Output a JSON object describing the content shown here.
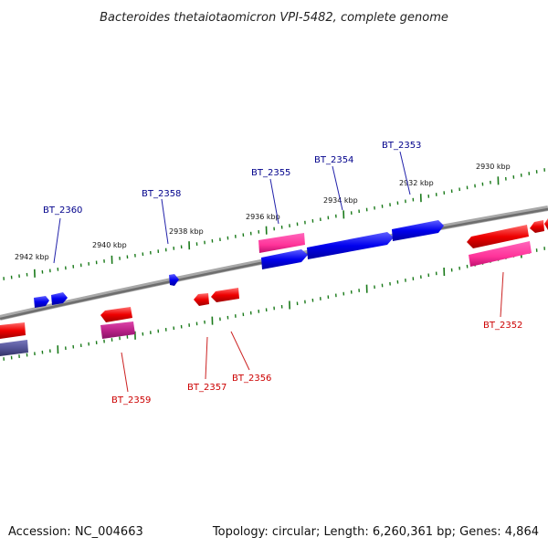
{
  "title": "Bacteroides thetaiotaomicron VPI-5482, complete genome",
  "footer": {
    "accession": "Accession: NC_004663",
    "topology": "Topology: circular; Length: 6,260,361 bp; Genes: 4,864"
  },
  "scale_labels": [
    "2942 kbp",
    "2940 kbp",
    "2938 kbp",
    "2936 kbp",
    "2934 kbp",
    "2932 kbp",
    "2930 kbp"
  ],
  "gene_labels": {
    "top": [
      "BT_2360",
      "BT_2358",
      "BT_2355",
      "BT_2354",
      "BT_2353"
    ],
    "bottom": [
      "BT_2359",
      "BT_2357",
      "BT_2356",
      "BT_2352"
    ]
  },
  "colors": {
    "forward_strand": "#0000ee",
    "reverse_strand": "#ee0000",
    "label_forward": "#00008b",
    "label_reverse": "#cc0000",
    "backbone": "#808080",
    "tick": "#1a7a1a",
    "pink_feature": "#ff3399",
    "purple_feature": "#555599"
  }
}
